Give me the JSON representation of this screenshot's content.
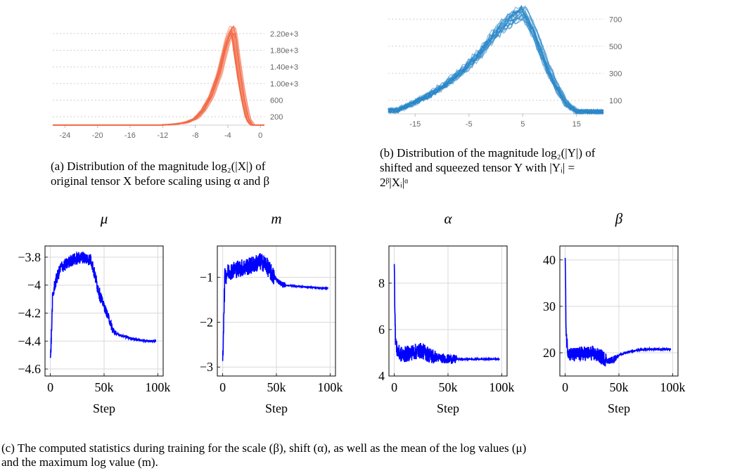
{
  "captions": {
    "a_line1": "(a) Distribution of the magnitude log₂(|X|) of",
    "a_line2": "original tensor X before scaling using α and β",
    "b_line1": "(b) Distribution of the magnitude log₂(|Y|) of",
    "b_line2": "shifted and squeezed tensor Y with |Yᵢ| =",
    "b_line3": "2ᵝ|Xᵢ|ᵅ",
    "c_line1": "(c) The computed statistics during training for the scale (β), shift (α), as well as the mean of the log values (μ)",
    "c_line2": "and the maximum log value (m)."
  },
  "colors": {
    "hist_a": "#f26b47",
    "hist_b": "#2a86c8",
    "training": "#0000ff",
    "grid": "#d9d9d9"
  },
  "chart_data": [
    {
      "id": "hist_a",
      "type": "area",
      "title": "",
      "xlabel": "",
      "ylabel": "",
      "x_ticks": [
        "-24",
        "-20",
        "-16",
        "-12",
        "-8",
        "-4",
        "0"
      ],
      "y_ticks": [
        "200",
        "600",
        "1.00e+3",
        "1.40e+3",
        "1.80e+3",
        "2.20e+3"
      ],
      "xlim": [
        -25.5,
        0.5
      ],
      "ylim": [
        0,
        2500
      ],
      "grid": true,
      "x": [
        -25.5,
        -12,
        -10,
        -9,
        -8,
        -7,
        -6,
        -5,
        -4.5,
        -4,
        -3.5,
        -3.2,
        -3,
        -2.5,
        -2,
        -1.5,
        -1
      ],
      "y": [
        0,
        0,
        30,
        70,
        150,
        350,
        700,
        1250,
        1650,
        2050,
        2300,
        2280,
        1900,
        1200,
        600,
        150,
        0
      ]
    },
    {
      "id": "hist_b",
      "type": "area",
      "title": "",
      "xlabel": "",
      "ylabel": "",
      "x_ticks": [
        "-15",
        "-5",
        "5",
        "15"
      ],
      "y_ticks": [
        "100",
        "300",
        "500",
        "700"
      ],
      "xlim": [
        -20,
        20
      ],
      "ylim": [
        0,
        800
      ],
      "grid": true,
      "x": [
        -18.5,
        -15,
        -12,
        -9,
        -6,
        -3,
        -1,
        1,
        3,
        5,
        7,
        9,
        11,
        13,
        15
      ],
      "y": [
        25,
        85,
        150,
        230,
        330,
        450,
        560,
        650,
        720,
        770,
        620,
        400,
        220,
        80,
        15
      ]
    },
    {
      "id": "mu",
      "type": "line",
      "title": "μ",
      "xlabel": "Step",
      "ylabel": "",
      "x_ticks": [
        "0",
        "50k",
        "100k"
      ],
      "y_ticks": [
        "−3.8",
        "−4",
        "−4.2",
        "−4.4",
        "−4.6"
      ],
      "xlim": [
        -5000,
        105000
      ],
      "ylim": [
        -4.65,
        -3.72
      ],
      "grid": true,
      "x": [
        0,
        1000,
        2000,
        4000,
        6000,
        10000,
        15000,
        20000,
        30000,
        38000,
        42000,
        46000,
        50000,
        55000,
        58000,
        62000,
        70000,
        80000,
        90000,
        98000
      ],
      "y": [
        -4.55,
        -4.35,
        -4.1,
        -4.0,
        -3.95,
        -3.87,
        -3.85,
        -3.82,
        -3.8,
        -3.82,
        -3.95,
        -4.07,
        -4.15,
        -4.25,
        -4.32,
        -4.35,
        -4.37,
        -4.39,
        -4.4,
        -4.4
      ]
    },
    {
      "id": "m",
      "type": "line",
      "title": "m",
      "xlabel": "Step",
      "ylabel": "",
      "x_ticks": [
        "0",
        "50k",
        "100k"
      ],
      "y_ticks": [
        "−1",
        "−2",
        "−3"
      ],
      "xlim": [
        -5000,
        105000
      ],
      "ylim": [
        -3.2,
        -0.3
      ],
      "grid": true,
      "x": [
        0,
        1000,
        2000,
        4000,
        8000,
        15000,
        25000,
        35000,
        40000,
        45000,
        50000,
        55000,
        60000,
        70000,
        80000,
        90000,
        98000
      ],
      "y": [
        -2.9,
        -1.8,
        -1.0,
        -0.9,
        -0.85,
        -0.8,
        -0.75,
        -0.65,
        -0.7,
        -0.9,
        -1.05,
        -1.15,
        -1.18,
        -1.2,
        -1.22,
        -1.24,
        -1.24
      ]
    },
    {
      "id": "alpha",
      "type": "line",
      "title": "α",
      "xlabel": "Step",
      "ylabel": "",
      "x_ticks": [
        "0",
        "50k",
        "100k"
      ],
      "y_ticks": [
        "8",
        "6",
        "4"
      ],
      "xlim": [
        -5000,
        105000
      ],
      "ylim": [
        4,
        9.6
      ],
      "grid": true,
      "x": [
        0,
        500,
        1000,
        2000,
        4000,
        8000,
        15000,
        25000,
        35000,
        45000,
        55000,
        65000,
        75000,
        85000,
        98000
      ],
      "y": [
        9.0,
        7.0,
        5.8,
        5.2,
        5.0,
        4.9,
        5.0,
        5.1,
        4.85,
        4.75,
        4.72,
        4.72,
        4.73,
        4.73,
        4.73
      ]
    },
    {
      "id": "beta",
      "type": "line",
      "title": "β",
      "xlabel": "Step",
      "ylabel": "",
      "x_ticks": [
        "0",
        "50k",
        "100k"
      ],
      "y_ticks": [
        "40",
        "30",
        "20"
      ],
      "xlim": [
        -5000,
        105000
      ],
      "ylim": [
        15,
        43
      ],
      "grid": true,
      "x": [
        0,
        500,
        1000,
        2000,
        4000,
        8000,
        15000,
        25000,
        35000,
        40000,
        45000,
        50000,
        60000,
        70000,
        80000,
        90000,
        98000
      ],
      "y": [
        40.5,
        30,
        24,
        21,
        19.8,
        19.5,
        19.8,
        19.9,
        19.0,
        18.2,
        18.6,
        19.5,
        20.3,
        20.6,
        20.8,
        20.8,
        20.8
      ]
    }
  ]
}
